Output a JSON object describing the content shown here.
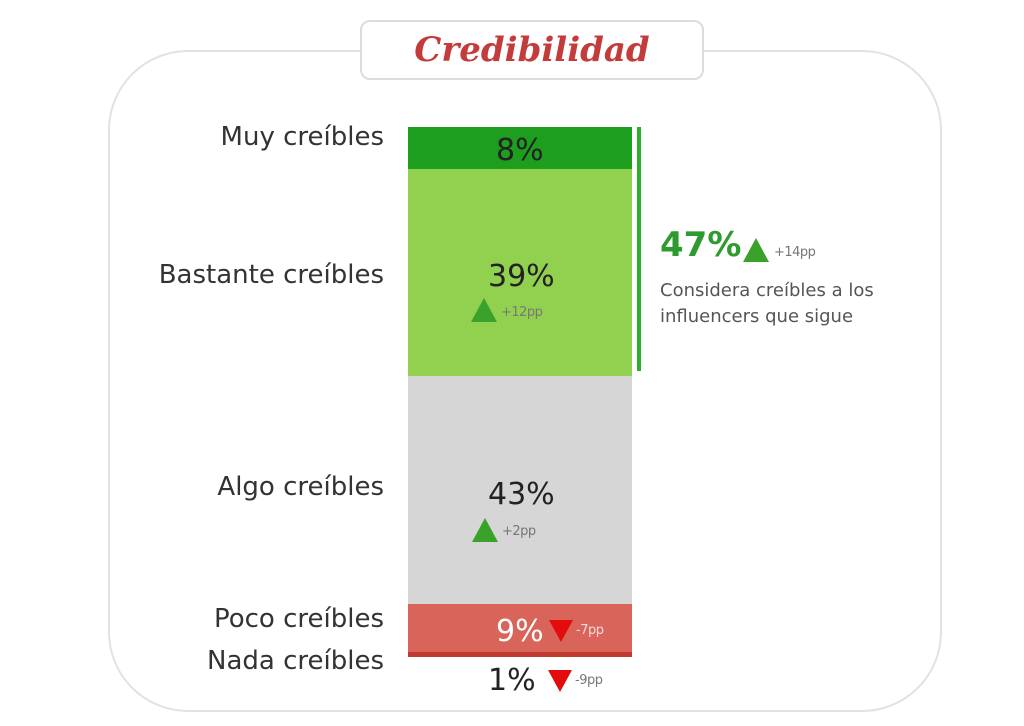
{
  "title": "Credibilidad",
  "chart_data": {
    "type": "bar",
    "stacked": true,
    "categories": [
      "Muy creíbles",
      "Bastante creíbles",
      "Algo creíbles",
      "Poco creíbles",
      "Nada creíbles"
    ],
    "values": [
      8,
      39,
      43,
      9,
      1
    ],
    "value_labels": [
      "8%",
      "39%",
      "43%",
      "9%",
      "1%"
    ],
    "changes": [
      "",
      "+12pp",
      "+2pp",
      "-7pp",
      "-9pp"
    ],
    "change_direction": [
      "",
      "up",
      "up",
      "down",
      "down"
    ],
    "colors": [
      "#1e9e1e",
      "#92d050",
      "#d6d6d6",
      "#d9645a",
      "#c03a30"
    ],
    "summary": {
      "value_label": "47%",
      "change": "+14pp",
      "change_direction": "up",
      "text": "Considera creíbles a los influencers que sigue"
    }
  }
}
